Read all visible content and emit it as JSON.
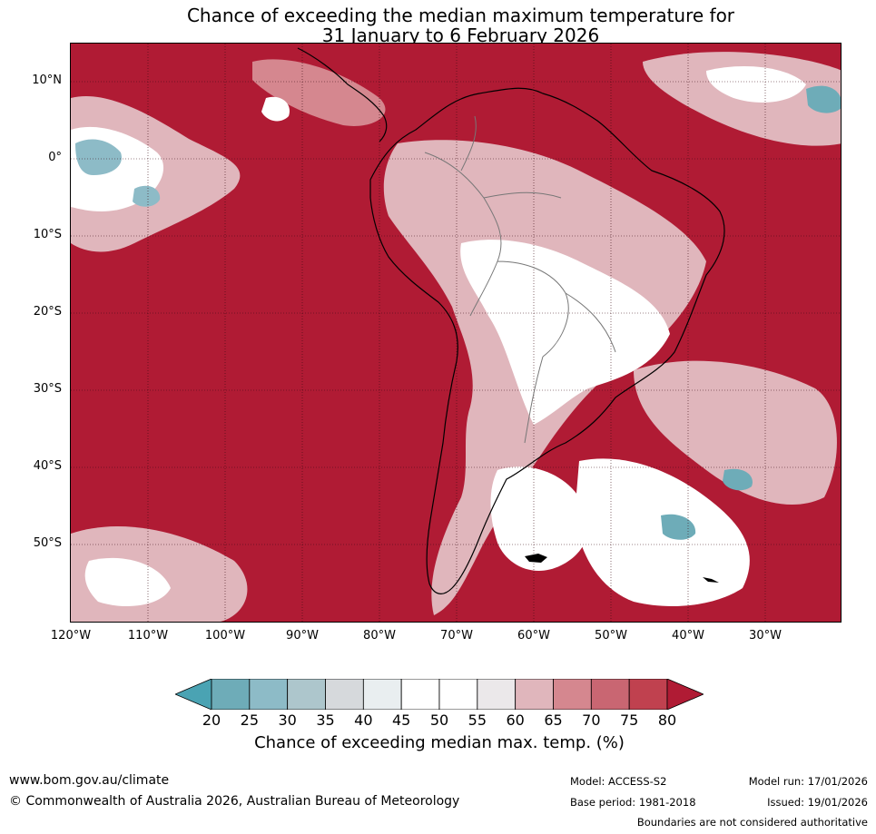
{
  "title": {
    "line1": "Chance of exceeding the median maximum temperature for",
    "line2": "31 January to 6 February 2026"
  },
  "map": {
    "region": "South America and surrounding oceans",
    "background_category_color": "#b01b34",
    "latitude_labels": [
      "10°N",
      "0°",
      "10°S",
      "20°S",
      "30°S",
      "40°S",
      "50°S"
    ],
    "longitude_labels": [
      "120°W",
      "110°W",
      "100°W",
      "90°W",
      "80°W",
      "70°W",
      "60°W",
      "50°W",
      "40°W",
      "30°W"
    ]
  },
  "legend": {
    "ticks": [
      "20",
      "25",
      "30",
      "35",
      "40",
      "45",
      "50",
      "55",
      "60",
      "65",
      "70",
      "75",
      "80"
    ],
    "colors": [
      "#4aa3b3",
      "#6eacb8",
      "#8dbbc7",
      "#adc6cc",
      "#d6d9dc",
      "#e9eef0",
      "#ffffff",
      "#ffffff",
      "#ebe8ea",
      "#e0b6bc",
      "#d5878f",
      "#c96672",
      "#c0414f",
      "#b01b34"
    ],
    "label": "Chance of exceeding median max. temp. (%)"
  },
  "footer": {
    "url": "www.bom.gov.au/climate",
    "copyright": "© Commonwealth of Australia 2026, Australian Bureau of Meteorology",
    "model": "Model: ACCESS-S2",
    "base_period": "Base period: 1981-2018",
    "model_run": "Model run: 17/01/2026",
    "issued": "Issued: 19/01/2026",
    "disclaimer": "Boundaries are not considered authoritative"
  }
}
